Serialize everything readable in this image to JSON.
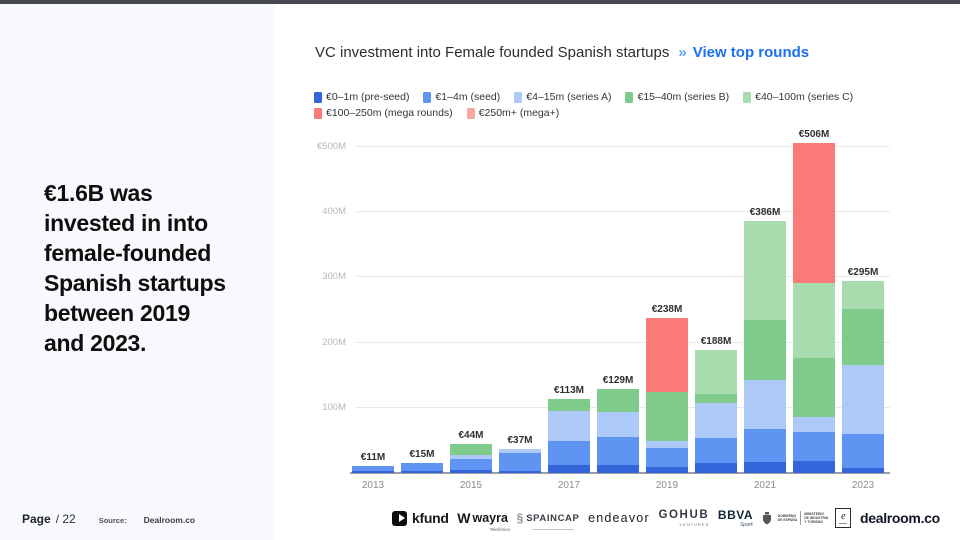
{
  "header": {
    "title": "VC investment into Female founded Spanish startups",
    "separator": "»",
    "link": "View top rounds"
  },
  "sidebar": {
    "headline": "€1.6B was\ninvested in into\nfemale-founded\nSpanish startups\nbetween 2019\nand 2023.",
    "page_label": "Page",
    "page_value": "/ 22",
    "source_label": "Source:",
    "source_value": "Dealroom.co"
  },
  "legend_rows": [
    [
      0,
      1,
      2,
      3,
      4
    ],
    [
      5,
      6
    ]
  ],
  "chart_data": {
    "type": "bar",
    "stacked": true,
    "title": "VC investment into Female founded Spanish startups",
    "categories": [
      "2013",
      "2014",
      "2015",
      "2016",
      "2017",
      "2018",
      "2019",
      "2020",
      "2021",
      "2022",
      "2023"
    ],
    "series": [
      {
        "name": "€0–1m (pre-seed)",
        "color": "#3565da",
        "values": [
          3,
          3,
          4,
          3,
          12,
          12,
          9,
          15,
          17,
          18,
          8
        ]
      },
      {
        "name": "€1–4m (seed)",
        "color": "#6094f2",
        "values": [
          8,
          12,
          18,
          28,
          37,
          43,
          29,
          38,
          50,
          45,
          52
        ]
      },
      {
        "name": "€4–15m (series A)",
        "color": "#adc9f7",
        "values": [
          0,
          0,
          6,
          6,
          46,
          38,
          11,
          54,
          76,
          23,
          106
        ]
      },
      {
        "name": "€15–40m (series B)",
        "color": "#7fcb8c",
        "values": [
          0,
          0,
          16,
          0,
          18,
          36,
          75,
          15,
          92,
          90,
          85
        ]
      },
      {
        "name": "€40–100m (series C)",
        "color": "#a8dbad",
        "values": [
          0,
          0,
          0,
          0,
          0,
          0,
          0,
          66,
          151,
          115,
          44
        ]
      },
      {
        "name": "€100–250m (mega rounds)",
        "color": "#fa7a78",
        "values": [
          0,
          0,
          0,
          0,
          0,
          0,
          114,
          0,
          0,
          215,
          0
        ]
      },
      {
        "name": "€250m+ (mega+)",
        "color": "#fba6a3",
        "values": [
          0,
          0,
          0,
          0,
          0,
          0,
          0,
          0,
          0,
          0,
          0
        ]
      }
    ],
    "totals": [
      11,
      15,
      44,
      37,
      113,
      129,
      238,
      188,
      386,
      506,
      295
    ],
    "totals_labels": [
      "€11M",
      "€15M",
      "€44M",
      "€37M",
      "€113M",
      "€129M",
      "€238M",
      "€188M",
      "€386M",
      "€506M",
      "€295M"
    ],
    "y_axis": {
      "ticks": [
        {
          "label": "€500M",
          "value": 500
        },
        {
          "label": "400M",
          "value": 400
        },
        {
          "label": "300M",
          "value": 300
        },
        {
          "label": "200M",
          "value": 200
        },
        {
          "label": "100M",
          "value": 100
        }
      ],
      "ylim": [
        0,
        500
      ]
    },
    "x_tick_labels": [
      "2013",
      "2015",
      "2017",
      "2019",
      "2021",
      "2023"
    ],
    "legend_position": "top",
    "grid": true
  },
  "footer_logos": {
    "kfund": {
      "name": "kfund"
    },
    "wayra": {
      "mark": "W",
      "name": "wayra",
      "sub": "Telefónica"
    },
    "spaincap": {
      "icon": "§",
      "name": "SPAINCAP"
    },
    "endeavor": {
      "name": "endeavor"
    },
    "gohub": {
      "name": "GOHUB",
      "sub": "VENTURES"
    },
    "bbva": {
      "name": "BBVA",
      "sub": "Spark"
    },
    "gov": {
      "col1": "GOBIERNO\nDE ESPAÑA",
      "col2": "MINISTERIO\nDE INDUSTRIA\nY TURISMO",
      "ebox": "e"
    },
    "dealroom": {
      "name": "dealroom.co"
    }
  }
}
